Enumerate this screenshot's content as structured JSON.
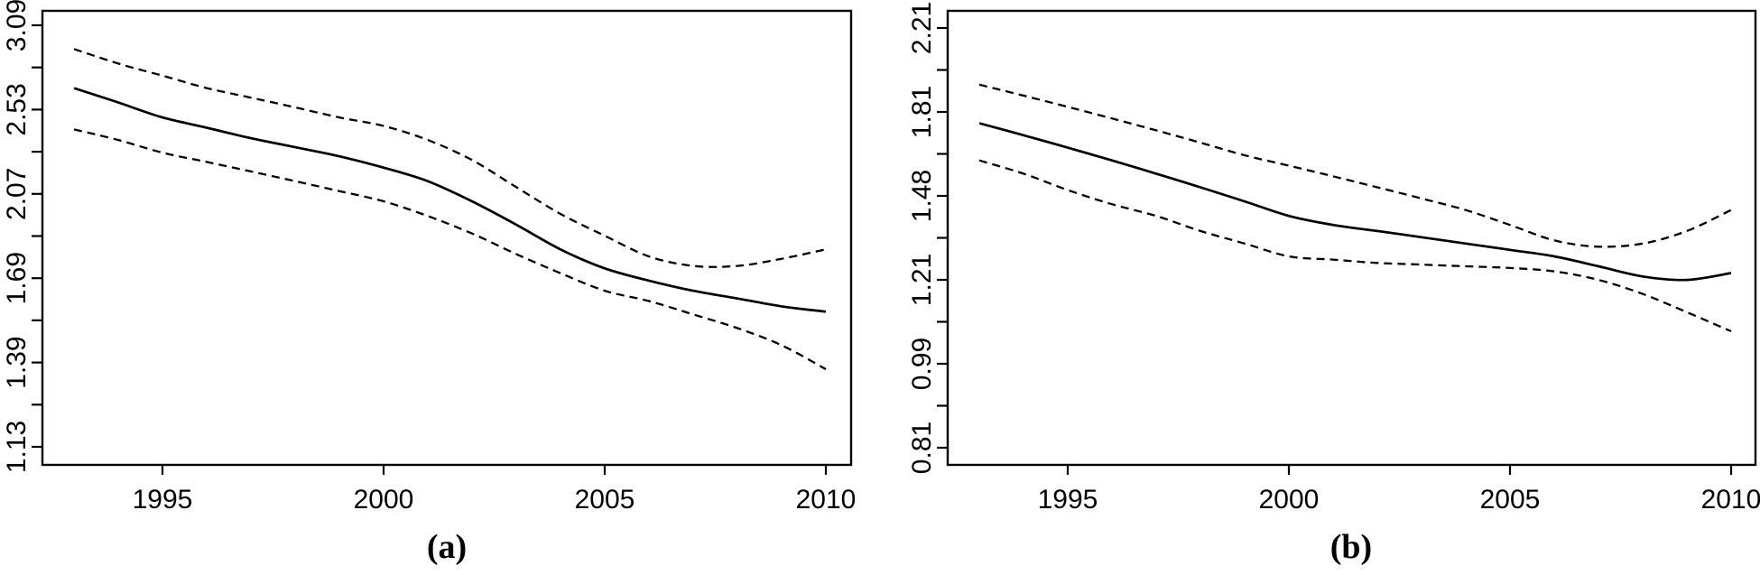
{
  "figure": {
    "background_color": "#ffffff",
    "line_color": "#000000"
  },
  "chart_data": [
    {
      "id": "a",
      "type": "line",
      "panel_label": "(a)",
      "title": "",
      "xlabel": "",
      "ylabel": "",
      "y_scale": "log",
      "x": [
        1993,
        1994,
        1995,
        1996,
        1997,
        1998,
        1999,
        2000,
        2001,
        2002,
        2003,
        2004,
        2005,
        2006,
        2007,
        2008,
        2009,
        2010
      ],
      "series": [
        {
          "name": "fitted",
          "style": "solid",
          "values": [
            2.66,
            2.57,
            2.48,
            2.42,
            2.36,
            2.31,
            2.26,
            2.2,
            2.13,
            2.03,
            1.92,
            1.81,
            1.73,
            1.68,
            1.64,
            1.61,
            1.58,
            1.56
          ]
        },
        {
          "name": "upper-ci",
          "style": "dashed",
          "values": [
            2.92,
            2.82,
            2.74,
            2.66,
            2.6,
            2.54,
            2.48,
            2.43,
            2.35,
            2.24,
            2.1,
            1.97,
            1.87,
            1.78,
            1.74,
            1.74,
            1.77,
            1.81
          ]
        },
        {
          "name": "lower-ci",
          "style": "dashed",
          "values": [
            2.41,
            2.35,
            2.28,
            2.23,
            2.18,
            2.13,
            2.08,
            2.03,
            1.96,
            1.88,
            1.79,
            1.71,
            1.64,
            1.6,
            1.55,
            1.5,
            1.44,
            1.36
          ]
        }
      ],
      "x_tick_values": [
        1995,
        2000,
        2005,
        2010
      ],
      "x_tick_labels": [
        "1995",
        "2000",
        "2005",
        "2010"
      ],
      "y_tick_values": [
        3.09,
        2.53,
        2.07,
        1.69,
        1.39,
        1.13
      ],
      "y_tick_labels": [
        "3.09",
        "2.53",
        "2.07",
        "1.69",
        "1.39",
        "1.13"
      ],
      "y_minor_ticks": true,
      "xlim": [
        1992.3,
        2010.6
      ],
      "ylim": [
        1.08,
        3.2
      ],
      "grid": false,
      "legend": "none"
    },
    {
      "id": "b",
      "type": "line",
      "panel_label": "(b)",
      "title": "",
      "xlabel": "",
      "ylabel": "",
      "y_scale": "log",
      "x": [
        1993,
        1994,
        1995,
        1996,
        1997,
        1998,
        1999,
        2000,
        2001,
        2002,
        2003,
        2004,
        2005,
        2006,
        2007,
        2008,
        2009,
        2010
      ],
      "series": [
        {
          "name": "fitted",
          "style": "solid",
          "values": [
            1.76,
            1.71,
            1.66,
            1.61,
            1.56,
            1.51,
            1.46,
            1.41,
            1.38,
            1.36,
            1.34,
            1.32,
            1.3,
            1.28,
            1.25,
            1.22,
            1.21,
            1.23
          ]
        },
        {
          "name": "upper-ci",
          "style": "dashed",
          "values": [
            1.93,
            1.88,
            1.83,
            1.78,
            1.73,
            1.68,
            1.63,
            1.59,
            1.55,
            1.51,
            1.47,
            1.43,
            1.38,
            1.33,
            1.31,
            1.32,
            1.36,
            1.43
          ]
        },
        {
          "name": "lower-ci",
          "style": "dashed",
          "values": [
            1.61,
            1.56,
            1.5,
            1.45,
            1.41,
            1.36,
            1.32,
            1.28,
            1.27,
            1.26,
            1.255,
            1.25,
            1.245,
            1.235,
            1.21,
            1.17,
            1.12,
            1.07
          ]
        }
      ],
      "x_tick_values": [
        1995,
        2000,
        2005,
        2010
      ],
      "x_tick_labels": [
        "1995",
        "2000",
        "2005",
        "2010"
      ],
      "y_tick_values": [
        2.21,
        1.81,
        1.48,
        1.21,
        0.99,
        0.81
      ],
      "y_tick_labels": [
        "2.21",
        "1.81",
        "1.48",
        "1.21",
        "0.99",
        "0.81"
      ],
      "y_minor_ticks": true,
      "xlim": [
        1992.3,
        2010.6
      ],
      "ylim": [
        0.79,
        2.3
      ],
      "grid": false,
      "legend": "none"
    }
  ]
}
